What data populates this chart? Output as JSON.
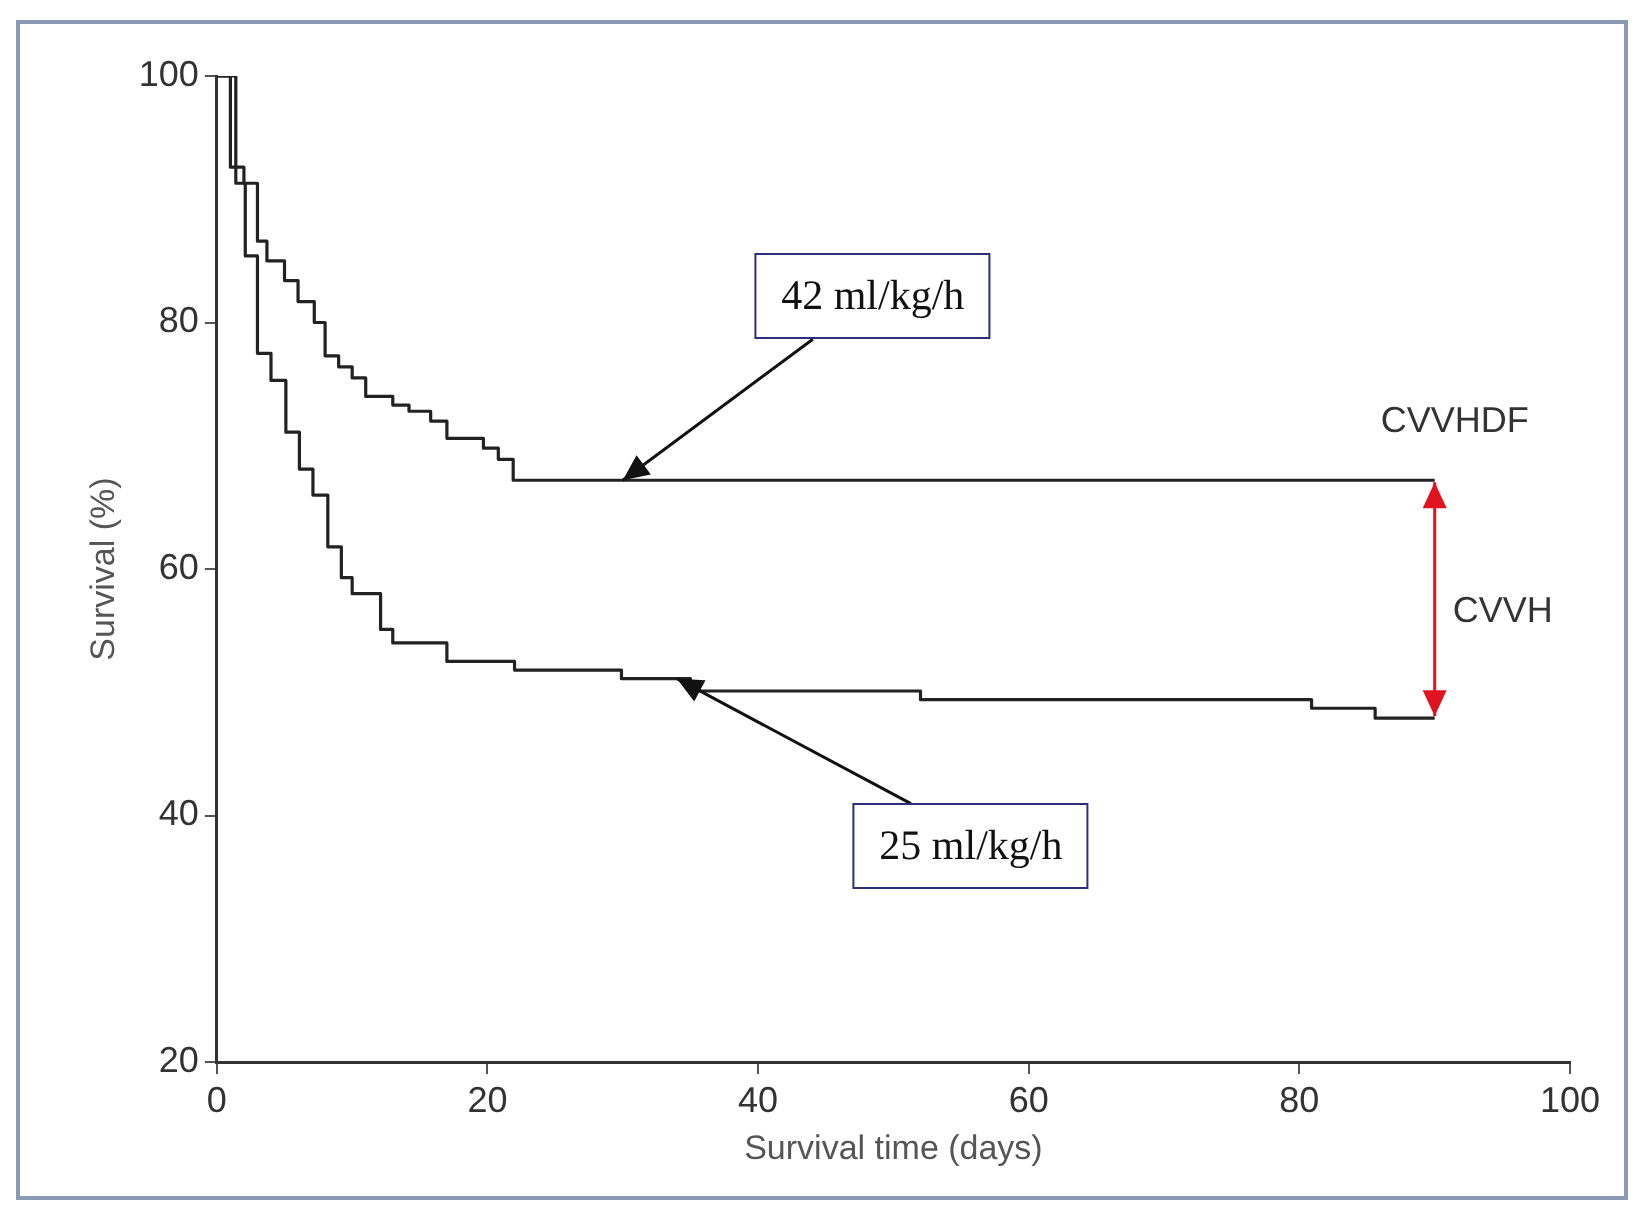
{
  "chart_data": {
    "type": "step",
    "xlabel": "Survival time (days)",
    "ylabel": "Survival (%)",
    "xlim": [
      0,
      100
    ],
    "xticks": [
      0,
      20,
      40,
      60,
      80,
      100
    ],
    "ylim": [
      20,
      100
    ],
    "yticks": [
      20,
      40,
      60,
      80,
      100
    ],
    "grid": false,
    "legend": false,
    "series": [
      {
        "name": "CVVHDF",
        "color": "#222222",
        "x": [
          0,
          1,
          2,
          3,
          3.7,
          5,
          6,
          7.2,
          8,
          9,
          10,
          11,
          13,
          14.2,
          15.8,
          17,
          19.7,
          20.8,
          21.9,
          90
        ],
        "values": [
          100,
          92.6,
          91.3,
          86.6,
          85,
          83.4,
          81.7,
          80,
          77.3,
          76.4,
          75.5,
          74,
          73.3,
          72.8,
          72,
          70.6,
          69.8,
          68.9,
          67.2,
          67.2
        ]
      },
      {
        "name": "CVVH",
        "color": "#222222",
        "x": [
          0,
          1.4,
          2.1,
          3,
          4,
          5.1,
          6.1,
          7.1,
          8.2,
          9.2,
          10,
          12.1,
          13,
          17,
          22,
          29.9,
          35,
          52,
          80.9,
          85.6,
          90
        ],
        "values": [
          100,
          91.3,
          85.4,
          77.5,
          75.3,
          71.1,
          68.1,
          66,
          61.8,
          59.3,
          58,
          55.1,
          54,
          52.5,
          51.8,
          51.1,
          50.1,
          49.4,
          48.7,
          47.9,
          47.9
        ]
      }
    ],
    "annotations": [
      {
        "text": "42 ml/kg/h",
        "x": 30,
        "y": 67.2
      },
      {
        "text": "25 ml/kg/h",
        "x": 34,
        "y": 51.1
      }
    ]
  }
}
